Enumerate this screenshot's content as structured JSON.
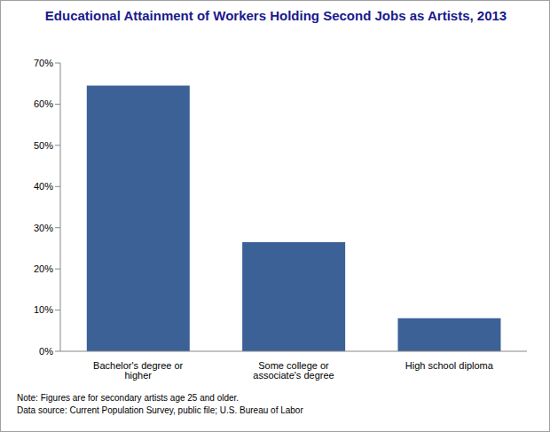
{
  "chart_data": {
    "type": "bar",
    "title": "Educational Attainment of Workers Holding Second Jobs as Artists, 2013",
    "categories": [
      "Bachelor's degree or higher",
      "Some college or associate's degree",
      "High school diploma"
    ],
    "values": [
      64.5,
      26.5,
      8
    ],
    "color": "#3b6196",
    "ylim": [
      0,
      70
    ],
    "yticks": [
      {
        "value": 0,
        "label": "0%"
      },
      {
        "value": 10,
        "label": "10%"
      },
      {
        "value": 20,
        "label": "20%"
      },
      {
        "value": 30,
        "label": "30%"
      },
      {
        "value": 40,
        "label": "40%"
      },
      {
        "value": 50,
        "label": "50%"
      },
      {
        "value": 60,
        "label": "60%"
      },
      {
        "value": 70,
        "label": "70%"
      }
    ],
    "grid": false,
    "notes": [
      "Note: Figures are for secondary artists age 25 and older.",
      "Data source: Current Population Survey, public file; U.S. Bureau of Labor"
    ]
  }
}
